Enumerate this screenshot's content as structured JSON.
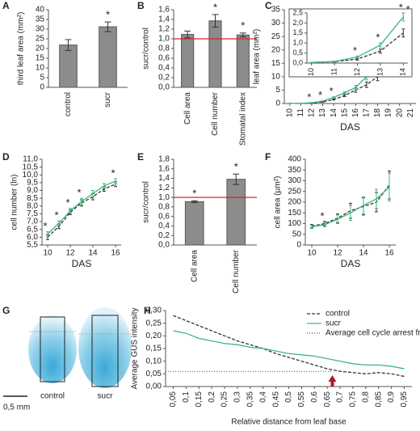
{
  "chart_data": [
    {
      "type": "bar",
      "label": "A",
      "y_label": "third leaf area (mm²)",
      "categories": [
        "control",
        "sucr"
      ],
      "values": [
        21.8,
        31.2
      ],
      "errors": [
        2.8,
        2.5
      ],
      "color": "#8c8c8c",
      "ylim": [
        0,
        40
      ],
      "yticks": [
        0,
        5,
        10,
        15,
        20,
        25,
        30,
        35,
        40
      ],
      "annotations": [
        {
          "text": "*",
          "category": 1
        }
      ]
    },
    {
      "type": "bar",
      "label": "B",
      "y_label": "sucr/control",
      "categories": [
        "Cell area",
        "Cell number",
        "Stomatal index"
      ],
      "values": [
        1.09,
        1.37,
        1.08
      ],
      "errors": [
        0.07,
        0.13,
        0.04
      ],
      "color": "#8c8c8c",
      "ylim": [
        0,
        1.6
      ],
      "yticks": [
        {
          "value": 0,
          "label": "0,0"
        },
        {
          "value": 0.2,
          "label": "0,2"
        },
        {
          "value": 0.4,
          "label": "0,4"
        },
        {
          "value": 0.6,
          "label": "0,6"
        },
        {
          "value": 0.8,
          "label": "0,8"
        },
        {
          "value": 1,
          "label": "1,0"
        },
        {
          "value": 1.2,
          "label": "1,2"
        },
        {
          "value": 1.4,
          "label": "1,4"
        },
        {
          "value": 1.6,
          "label": "1,6"
        }
      ],
      "ref_line": {
        "value": 1,
        "color": "#e0201b"
      },
      "annotations": [
        {
          "text": "*",
          "category": 1
        },
        {
          "text": "*",
          "category": 2
        }
      ]
    },
    {
      "type": "line",
      "label": "C",
      "y_label": "leaf area (mm²)",
      "x_label": "DAS",
      "x": [
        10,
        11,
        12,
        13,
        14,
        15,
        16,
        17,
        18,
        19,
        20,
        21
      ],
      "series": [
        {
          "name": "control",
          "color": "#333333",
          "line_style": "dashed",
          "values": [
            0.03,
            0.07,
            0.2,
            0.6,
            1.5,
            3,
            5,
            7,
            10,
            13,
            17,
            21
          ],
          "errors": [
            0.01,
            0.02,
            0.05,
            0.1,
            0.2,
            0.4,
            0.8,
            1,
            1.5,
            2,
            2.5,
            3
          ]
        },
        {
          "name": "sucr",
          "color": "#3cb878",
          "line_style": "solid",
          "values": [
            0.03,
            0.08,
            0.3,
            0.9,
            2.3,
            4,
            6,
            10,
            14,
            18,
            24,
            30
          ],
          "errors": [
            0.01,
            0.02,
            0.05,
            0.1,
            0.2,
            0.4,
            0.8,
            1.2,
            1.5,
            2,
            2.5,
            3
          ]
        }
      ],
      "xlim": [
        9.5,
        21.5
      ],
      "xticks": [
        10,
        11,
        12,
        13,
        14,
        15,
        16,
        17,
        18,
        19,
        20,
        21
      ],
      "ylim": [
        0,
        35
      ],
      "yticks": [
        0,
        5,
        10,
        15,
        20,
        25,
        30,
        35
      ],
      "annotations": [
        {
          "text": "*",
          "x": 12
        },
        {
          "text": "*",
          "x": 13
        },
        {
          "text": "*",
          "x": 14
        },
        {
          "text": "*",
          "x": 17
        },
        {
          "text": "*",
          "x": 18
        },
        {
          "text": "*",
          "x": 20
        },
        {
          "text": "*",
          "x": 21
        }
      ],
      "inset": {
        "xlim": [
          9.8,
          14.2
        ],
        "xticks": [
          10,
          11,
          12,
          13,
          14
        ],
        "ylim": [
          0,
          2.5
        ],
        "yticks": [
          {
            "value": 0,
            "label": "0,0"
          },
          {
            "value": 0.5,
            "label": "0,5"
          },
          {
            "value": 1,
            "label": "1,0"
          },
          {
            "value": 1.5,
            "label": "1,5"
          },
          {
            "value": 2,
            "label": "2,0"
          },
          {
            "value": 2.5,
            "label": "2,5"
          }
        ],
        "annotations": [
          {
            "text": "*",
            "x": 12
          },
          {
            "text": "*",
            "x": 13
          },
          {
            "text": "*",
            "x": 14
          }
        ]
      }
    },
    {
      "type": "line",
      "label": "D",
      "y_label": "cell number (ln)",
      "x_label": "DAS",
      "x": [
        10,
        11,
        12,
        13,
        14,
        15,
        16
      ],
      "series": [
        {
          "name": "control",
          "color": "#333333",
          "line_style": "dashed",
          "values": [
            6.0,
            6.7,
            7.6,
            8.2,
            8.6,
            9.1,
            9.4
          ],
          "errors": [
            0.15,
            0.15,
            0.15,
            0.2,
            0.2,
            0.15,
            0.15
          ]
        },
        {
          "name": "sucr",
          "color": "#3cb878",
          "line_style": "solid",
          "values": [
            6.2,
            6.9,
            7.7,
            8.3,
            8.8,
            9.3,
            9.6
          ],
          "errors": [
            0.15,
            0.15,
            0.15,
            0.2,
            0.2,
            0.15,
            0.15
          ]
        }
      ],
      "xlim": [
        9.5,
        16.5
      ],
      "xticks": [
        10,
        12,
        14,
        16
      ],
      "ylim": [
        5.5,
        11
      ],
      "yticks": [
        {
          "value": 5.5,
          "label": "5,5"
        },
        {
          "value": 6,
          "label": "6,0"
        },
        {
          "value": 6.5,
          "label": "6,5"
        },
        {
          "value": 7,
          "label": "7,0"
        },
        {
          "value": 7.5,
          "label": "7,5"
        },
        {
          "value": 8,
          "label": "8,0"
        },
        {
          "value": 8.5,
          "label": "8,5"
        },
        {
          "value": 9,
          "label": "9,0"
        },
        {
          "value": 9.5,
          "label": "9,5"
        },
        {
          "value": 10,
          "label": "10,0"
        },
        {
          "value": 10.5,
          "label": "10,5"
        },
        {
          "value": 11,
          "label": "11,0"
        }
      ],
      "annotations": [
        {
          "text": "*",
          "x": 10
        },
        {
          "text": "*",
          "x": 11
        },
        {
          "text": "*",
          "x": 12
        },
        {
          "text": "*",
          "x": 13
        },
        {
          "text": "*",
          "x": 16
        }
      ]
    },
    {
      "type": "bar",
      "label": "E",
      "y_label": "sucr/control",
      "categories": [
        "Cell area",
        "Cell number"
      ],
      "values": [
        0.91,
        1.38
      ],
      "errors": [
        0.02,
        0.11
      ],
      "color": "#8c8c8c",
      "ylim": [
        0,
        1.8
      ],
      "yticks": [
        {
          "value": 0,
          "label": "0,0"
        },
        {
          "value": 0.2,
          "label": "0,2"
        },
        {
          "value": 0.4,
          "label": "0,4"
        },
        {
          "value": 0.6,
          "label": "0,6"
        },
        {
          "value": 0.8,
          "label": "0,8"
        },
        {
          "value": 1,
          "label": "1,0"
        },
        {
          "value": 1.2,
          "label": "1,2"
        },
        {
          "value": 1.4,
          "label": "1,4"
        },
        {
          "value": 1.6,
          "label": "1,6"
        },
        {
          "value": 1.8,
          "label": "1,8"
        }
      ],
      "ref_line": {
        "value": 1,
        "color": "#e0201b"
      },
      "annotations": [
        {
          "text": "*",
          "category": 0
        },
        {
          "text": "*",
          "category": 1
        }
      ]
    },
    {
      "type": "line",
      "label": "F",
      "y_label": "cell area (µm²)",
      "x_label": "DAS",
      "x": [
        10,
        11,
        12,
        13,
        14,
        15,
        16
      ],
      "series": [
        {
          "name": "control",
          "color": "#333333",
          "line_style": "dashed",
          "values": [
            88,
            100,
            125,
            160,
            180,
            200,
            280
          ],
          "errors": [
            8,
            10,
            20,
            35,
            40,
            45,
            65
          ]
        },
        {
          "name": "sucr",
          "color": "#3cb878",
          "line_style": "solid",
          "values": [
            85,
            95,
            120,
            150,
            185,
            215,
            270
          ],
          "errors": [
            8,
            10,
            20,
            35,
            40,
            45,
            65
          ]
        }
      ],
      "xlim": [
        9.5,
        16.5
      ],
      "xticks": [
        10,
        12,
        14,
        16
      ],
      "ylim": [
        0,
        400
      ],
      "yticks": [
        0,
        50,
        100,
        150,
        200,
        250,
        300,
        350,
        400
      ],
      "annotations": [
        {
          "text": "*",
          "x": 11
        }
      ]
    },
    {
      "type": "line",
      "label": "H",
      "y_label": "Average GUS intensity",
      "x_label": "Relative distance from leaf base",
      "legend": "upper right",
      "x": [
        0.05,
        0.1,
        0.15,
        0.2,
        0.25,
        0.3,
        0.35,
        0.4,
        0.45,
        0.5,
        0.55,
        0.6,
        0.65,
        0.7,
        0.75,
        0.8,
        0.85,
        0.9,
        0.95
      ],
      "series": [
        {
          "name": "control",
          "color": "#333333",
          "line_style": "dashed",
          "values": [
            0.28,
            0.26,
            0.24,
            0.22,
            0.2,
            0.18,
            0.165,
            0.15,
            0.13,
            0.115,
            0.1,
            0.085,
            0.07,
            0.06,
            0.055,
            0.05,
            0.055,
            0.05,
            0.04
          ]
        },
        {
          "name": "sucr",
          "color": "#3cb878",
          "line_style": "solid",
          "values": [
            0.22,
            0.21,
            0.19,
            0.18,
            0.17,
            0.165,
            0.155,
            0.15,
            0.14,
            0.13,
            0.125,
            0.12,
            0.11,
            0.1,
            0.09,
            0.085,
            0.085,
            0.08,
            0.07
          ]
        }
      ],
      "arrest_front": {
        "name": "Average cell cycle arrest front",
        "x": 0.67,
        "y": 0.06,
        "color": "#b3161b"
      },
      "xlim": [
        0.02,
        0.98
      ],
      "xticks": [
        {
          "value": 0.05,
          "label": "0,05"
        },
        {
          "value": 0.1,
          "label": "0,1"
        },
        {
          "value": 0.15,
          "label": "0,15"
        },
        {
          "value": 0.2,
          "label": "0,2"
        },
        {
          "value": 0.25,
          "label": "0,25"
        },
        {
          "value": 0.3,
          "label": "0,3"
        },
        {
          "value": 0.35,
          "label": "0,35"
        },
        {
          "value": 0.4,
          "label": "0,4"
        },
        {
          "value": 0.45,
          "label": "0,45"
        },
        {
          "value": 0.5,
          "label": "0,5"
        },
        {
          "value": 0.55,
          "label": "0,55"
        },
        {
          "value": 0.6,
          "label": "0,6"
        },
        {
          "value": 0.65,
          "label": "0,65"
        },
        {
          "value": 0.7,
          "label": "0,7"
        },
        {
          "value": 0.75,
          "label": "0,75"
        },
        {
          "value": 0.8,
          "label": "0,8"
        },
        {
          "value": 0.85,
          "label": "0,85"
        },
        {
          "value": 0.9,
          "label": "0,9"
        },
        {
          "value": 0.95,
          "label": "0,95"
        }
      ],
      "ylim": [
        0,
        0.3
      ],
      "yticks": [
        {
          "value": 0,
          "label": "0,00"
        },
        {
          "value": 0.05,
          "label": "0,05"
        },
        {
          "value": 0.1,
          "label": "0,10"
        },
        {
          "value": 0.15,
          "label": "0,15"
        },
        {
          "value": 0.2,
          "label": "0,20"
        },
        {
          "value": 0.25,
          "label": "0,25"
        },
        {
          "value": 0.3,
          "label": "0,30"
        }
      ]
    }
  ],
  "image_panel": {
    "label": "G",
    "captions": [
      "control",
      "sucr"
    ],
    "scale": "0,5 mm"
  }
}
